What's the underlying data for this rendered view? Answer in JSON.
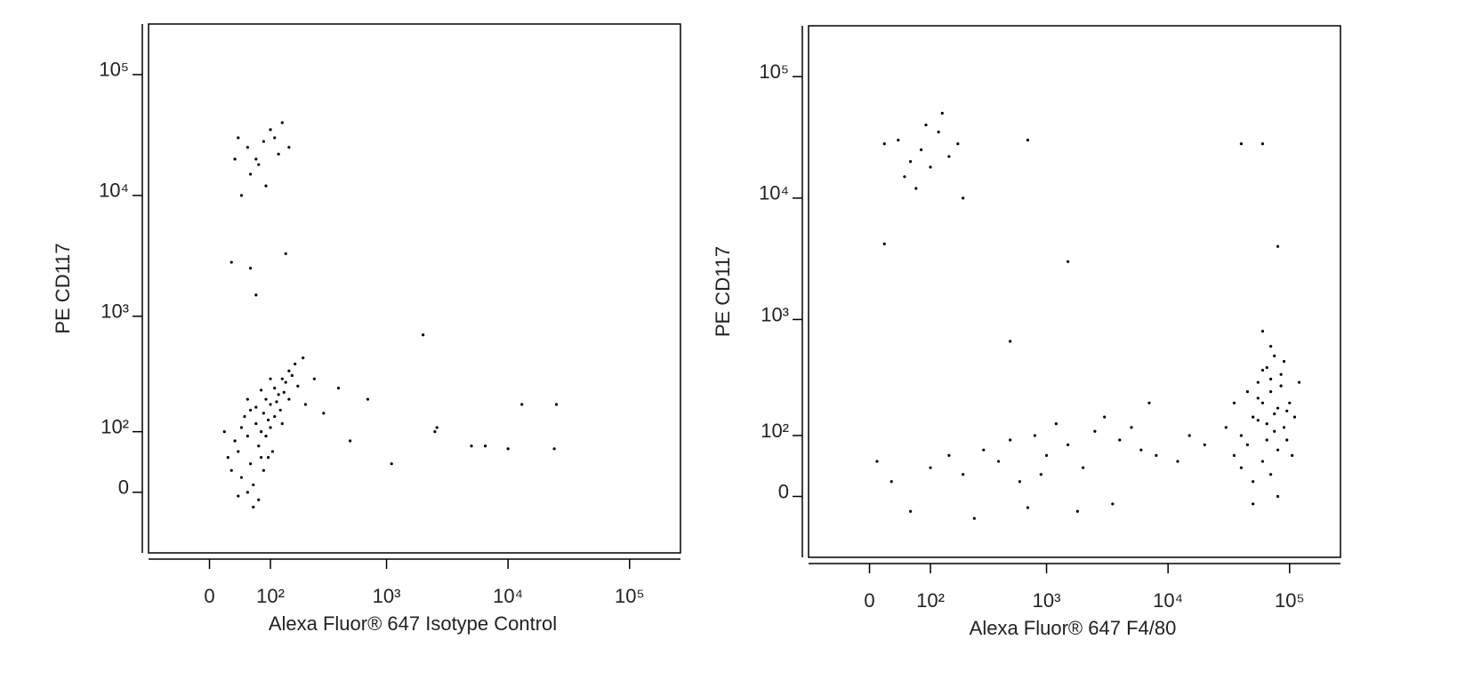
{
  "chart_data": [
    {
      "type": "scatter",
      "x_label": "Alexa Fluor® 647 Isotype Control",
      "y_label": "PE CD117",
      "xscale": "biexponential",
      "yscale": "biexponential",
      "color": "#000000",
      "xlim": [
        -100,
        262144
      ],
      "ylim": [
        -100,
        262144
      ],
      "xticks": [
        0,
        {
          "value": 100,
          "label": "10²"
        },
        {
          "value": 1000,
          "label": "10³"
        },
        {
          "value": 10000,
          "label": "10⁴"
        },
        {
          "value": 100000,
          "label": "10⁵"
        }
      ],
      "yticks": [
        0,
        {
          "value": 100,
          "label": "10²"
        },
        {
          "value": 1000,
          "label": "10³"
        },
        {
          "value": 10000,
          "label": "10⁴"
        },
        {
          "value": 100000,
          "label": "10⁵"
        }
      ],
      "x": [
        40,
        55,
        70,
        85,
        100,
        60,
        75,
        90,
        110,
        130,
        45,
        65,
        80,
        95,
        120,
        150,
        35,
        50,
        70,
        90,
        105,
        125,
        140,
        170,
        30,
        55,
        75,
        85,
        100,
        115,
        135,
        160,
        200,
        25,
        45,
        60,
        80,
        100,
        65,
        40,
        95,
        110,
        130,
        150,
        180,
        210,
        250,
        20,
        55,
        80,
        40,
        55,
        70,
        85,
        100,
        120,
        60,
        90,
        45,
        110,
        130,
        75,
        150,
        35,
        300,
        400,
        500,
        700,
        1100,
        2000,
        2500,
        2600,
        5000,
        6500,
        10000,
        13000,
        25000,
        24000,
        30,
        60,
        140,
        70
      ],
      "y": [
        60,
        90,
        120,
        150,
        180,
        40,
        70,
        200,
        250,
        300,
        20,
        10,
        100,
        130,
        220,
        350,
        80,
        140,
        170,
        90,
        60,
        160,
        280,
        400,
        30,
        0,
        -10,
        30,
        110,
        190,
        230,
        320,
        450,
        50,
        110,
        160,
        240,
        300,
        -20,
        -5,
        50,
        140,
        120,
        200,
        260,
        180,
        300,
        100,
        200,
        50,
        30000,
        25000,
        20000,
        28000,
        35000,
        22000,
        15000,
        12000,
        10000,
        30000,
        40000,
        18000,
        25000,
        20000,
        150,
        250,
        80,
        200,
        40,
        700,
        100,
        110,
        70,
        70,
        65,
        180,
        180,
        65,
        2800,
        2500,
        3300,
        1500
      ]
    },
    {
      "type": "scatter",
      "x_label": "Alexa Fluor® 647 F4/80",
      "y_label": "PE CD117",
      "xscale": "biexponential",
      "yscale": "biexponential",
      "color": "#000000",
      "xlim": [
        -100,
        262144
      ],
      "ylim": [
        -100,
        262144
      ],
      "xticks": [
        0,
        {
          "value": 100,
          "label": "10²"
        },
        {
          "value": 1000,
          "label": "10³"
        },
        {
          "value": 10000,
          "label": "10⁴"
        },
        {
          "value": 100000,
          "label": "10⁵"
        }
      ],
      "yticks": [
        0,
        {
          "value": 100,
          "label": "10²"
        },
        {
          "value": 1000,
          "label": "10³"
        },
        {
          "value": 10000,
          "label": "10⁴"
        },
        {
          "value": 100000,
          "label": "10⁵"
        }
      ],
      "x": [
        40000,
        50000,
        60000,
        70000,
        80000,
        90000,
        55000,
        65000,
        75000,
        45000,
        35000,
        85000,
        100000,
        60000,
        70000,
        50000,
        80000,
        95000,
        65000,
        75000,
        55000,
        85000,
        110000,
        30000,
        40000,
        70000,
        60000,
        90000,
        45000,
        120000,
        50000,
        80000,
        65000,
        75000,
        55000,
        95000,
        35000,
        105000,
        70000,
        60000,
        10,
        30,
        60,
        100,
        150,
        200,
        300,
        400,
        500,
        600,
        800,
        1000,
        1200,
        1500,
        2000,
        2500,
        3000,
        4000,
        5000,
        6000,
        7000,
        8000,
        3500,
        1800,
        700,
        250,
        900,
        15000,
        20000,
        12000,
        20,
        40,
        60,
        80,
        100,
        120,
        150,
        180,
        70,
        50,
        90,
        200,
        130,
        700,
        40000,
        60000,
        80000,
        20,
        1500,
        500
      ],
      "y": [
        100,
        150,
        200,
        250,
        180,
        120,
        300,
        400,
        500,
        80,
        60,
        350,
        200,
        50,
        30,
        20,
        70,
        90,
        130,
        160,
        220,
        280,
        150,
        120,
        40,
        600,
        800,
        450,
        250,
        300,
        -10,
        0,
        90,
        110,
        140,
        170,
        200,
        60,
        320,
        380,
        50,
        20,
        -20,
        40,
        60,
        30,
        70,
        50,
        90,
        20,
        100,
        60,
        130,
        80,
        40,
        110,
        150,
        90,
        120,
        70,
        200,
        60,
        -10,
        -20,
        -15,
        -30,
        30,
        100,
        80,
        50,
        28000,
        30000,
        20000,
        25000,
        18000,
        35000,
        22000,
        28000,
        12000,
        15000,
        40000,
        10000,
        50000,
        30000,
        28000,
        28000,
        4000,
        4200,
        3000,
        660
      ]
    }
  ]
}
